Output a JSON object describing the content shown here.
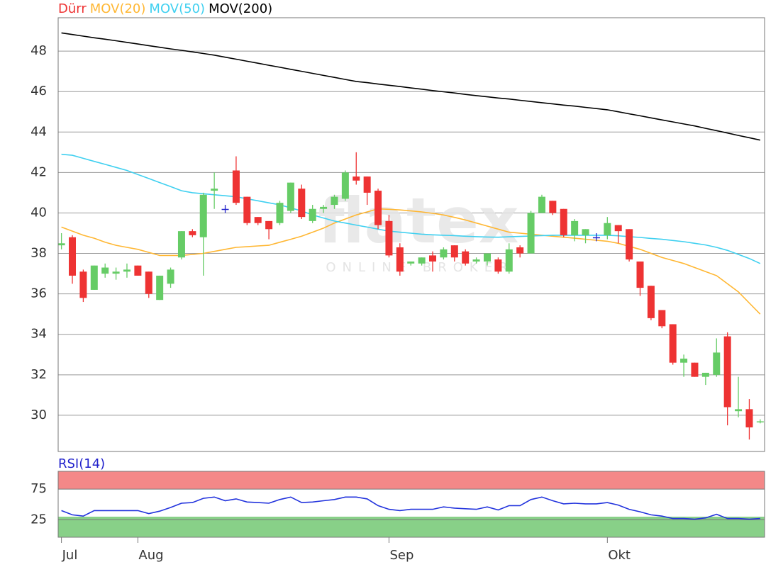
{
  "chart_data": [
    {
      "type": "candlestick",
      "name": "Dürr",
      "color": "#ee3333",
      "up_color": "#66cc66",
      "down_color": "#ee3333",
      "doji_color": "#2222cc",
      "watermark": "flatex",
      "watermark_sub": "ONLINE BROKER",
      "open": [
        38.4,
        38.8,
        37.1,
        36.2,
        37.0,
        37.0,
        37.1,
        37.4,
        37.1,
        35.7,
        36.5,
        37.8,
        39.1,
        38.8,
        41.1,
        40.2,
        42.1,
        40.8,
        39.8,
        39.6,
        39.5,
        40.1,
        41.2,
        39.6,
        40.2,
        40.4,
        40.7,
        41.8,
        41.8,
        41.1,
        39.6,
        38.3,
        37.5,
        37.5,
        37.9,
        37.8,
        38.4,
        38.1,
        37.6,
        37.6,
        37.7,
        37.1,
        38.3,
        38.0,
        40.0,
        40.6,
        40.2,
        38.9,
        38.9,
        38.8,
        38.9,
        39.4,
        39.2,
        37.6,
        36.4,
        35.2,
        34.5,
        32.6,
        32.6,
        31.9,
        32.0,
        33.9,
        30.2,
        30.3,
        29.65
      ],
      "high": [
        39.0,
        38.9,
        37.2,
        37.4,
        37.5,
        37.3,
        37.5,
        37.4,
        37.1,
        36.9,
        37.3,
        39.1,
        39.2,
        41.0,
        42.0,
        40.4,
        42.8,
        40.8,
        39.8,
        39.6,
        40.6,
        41.5,
        41.4,
        40.4,
        40.4,
        40.9,
        42.1,
        43.0,
        41.8,
        41.2,
        39.9,
        38.5,
        37.6,
        37.8,
        38.1,
        38.3,
        38.4,
        38.2,
        37.8,
        38.0,
        37.8,
        38.5,
        38.4,
        40.1,
        40.9,
        40.6,
        40.2,
        39.7,
        39.2,
        39.0,
        39.8,
        39.4,
        39.2,
        37.6,
        36.4,
        35.2,
        34.5,
        33.0,
        32.6,
        32.1,
        33.8,
        34.1,
        31.9,
        30.8,
        29.8
      ],
      "low": [
        38.2,
        36.5,
        35.6,
        36.2,
        36.8,
        36.7,
        36.8,
        36.9,
        35.8,
        35.7,
        36.3,
        37.7,
        38.8,
        36.9,
        40.2,
        40.0,
        40.4,
        39.4,
        39.4,
        38.7,
        39.4,
        40.0,
        39.7,
        39.5,
        40.0,
        40.2,
        40.6,
        41.4,
        40.4,
        39.2,
        37.8,
        36.9,
        37.4,
        37.4,
        37.1,
        37.7,
        37.6,
        37.4,
        37.5,
        37.4,
        37.0,
        37.0,
        37.8,
        38.0,
        40.0,
        39.9,
        38.8,
        38.6,
        38.5,
        38.6,
        38.7,
        38.5,
        37.6,
        35.9,
        34.7,
        34.3,
        32.5,
        31.9,
        31.9,
        31.5,
        31.9,
        29.5,
        29.9,
        28.8,
        29.6
      ],
      "close": [
        38.5,
        36.9,
        35.8,
        37.4,
        37.3,
        37.1,
        37.2,
        36.9,
        36.0,
        36.9,
        37.2,
        39.1,
        38.9,
        40.9,
        41.2,
        40.2,
        40.5,
        39.5,
        39.5,
        39.2,
        40.5,
        41.5,
        39.8,
        40.2,
        40.3,
        40.8,
        42.0,
        41.6,
        41.0,
        39.4,
        37.9,
        37.1,
        37.6,
        37.8,
        37.6,
        38.2,
        37.8,
        37.5,
        37.7,
        38.0,
        37.1,
        38.2,
        38.0,
        40.0,
        40.8,
        40.0,
        38.9,
        39.6,
        39.2,
        38.8,
        39.5,
        39.1,
        37.7,
        36.3,
        34.8,
        34.4,
        32.6,
        32.8,
        31.9,
        32.1,
        33.1,
        30.4,
        30.3,
        29.4,
        29.7
      ],
      "series": [
        {
          "name": "MOV(20)",
          "color": "#ffb733",
          "values": [
            39.3,
            39.1,
            38.9,
            38.75,
            38.55,
            38.4,
            38.3,
            38.2,
            38.05,
            37.9,
            37.9,
            37.9,
            37.95,
            38.0,
            38.1,
            38.2,
            38.3,
            38.33,
            38.37,
            38.4,
            38.55,
            38.7,
            38.85,
            39.05,
            39.25,
            39.5,
            39.7,
            39.9,
            40.05,
            40.2,
            40.18,
            40.15,
            40.1,
            40.05,
            39.98,
            39.9,
            39.78,
            39.65,
            39.5,
            39.35,
            39.2,
            39.05,
            39.0,
            38.95,
            38.9,
            38.85,
            38.8,
            38.75,
            38.7,
            38.65,
            38.6,
            38.5,
            38.35,
            38.2,
            38.0,
            37.8,
            37.65,
            37.5,
            37.3,
            37.1,
            36.9,
            36.5,
            36.1,
            35.55,
            35.0
          ]
        },
        {
          "name": "MOV(50)",
          "color": "#40d0f0",
          "values": [
            42.9,
            42.85,
            42.7,
            42.55,
            42.4,
            42.25,
            42.1,
            41.9,
            41.7,
            41.5,
            41.3,
            41.1,
            41.0,
            40.95,
            40.9,
            40.85,
            40.8,
            40.7,
            40.6,
            40.5,
            40.4,
            40.25,
            40.1,
            39.9,
            39.75,
            39.6,
            39.5,
            39.4,
            39.3,
            39.2,
            39.1,
            39.05,
            39.0,
            38.95,
            38.92,
            38.9,
            38.88,
            38.85,
            38.83,
            38.81,
            38.8,
            38.82,
            38.84,
            38.86,
            38.88,
            38.9,
            38.9,
            38.9,
            38.9,
            38.9,
            38.9,
            38.87,
            38.83,
            38.79,
            38.74,
            38.7,
            38.64,
            38.58,
            38.5,
            38.42,
            38.3,
            38.15,
            37.95,
            37.75,
            37.5
          ]
        },
        {
          "name": "MOV(200)",
          "color": "#000000",
          "values": [
            48.9,
            48.82,
            48.74,
            48.66,
            48.59,
            48.51,
            48.43,
            48.35,
            48.27,
            48.19,
            48.11,
            48.04,
            47.96,
            47.88,
            47.8,
            47.7,
            47.6,
            47.5,
            47.4,
            47.3,
            47.2,
            47.1,
            47.0,
            46.9,
            46.8,
            46.7,
            46.6,
            46.5,
            46.44,
            46.37,
            46.31,
            46.25,
            46.18,
            46.12,
            46.05,
            45.99,
            45.93,
            45.86,
            45.8,
            45.74,
            45.68,
            45.63,
            45.57,
            45.51,
            45.45,
            45.39,
            45.33,
            45.28,
            45.22,
            45.16,
            45.1,
            45.0,
            44.9,
            44.8,
            44.7,
            44.6,
            44.5,
            44.4,
            44.3,
            44.18,
            44.07,
            43.95,
            43.83,
            43.72,
            43.6
          ]
        }
      ],
      "ylim": [
        28.21,
        49.65
      ],
      "yticks": [
        30,
        32,
        34,
        36,
        38,
        40,
        42,
        44,
        46,
        48
      ],
      "xlim": [
        -0.3,
        64.4
      ],
      "xticks": [
        {
          "value": 0,
          "label": "Jul"
        },
        {
          "value": 7,
          "label": "Aug"
        },
        {
          "value": 30,
          "label": "Sep"
        },
        {
          "value": 50,
          "label": "Okt"
        }
      ],
      "grid": true
    },
    {
      "type": "line",
      "title": "RSI(14)",
      "title_color": "#2222cc",
      "color": "#2233dd",
      "values": [
        40,
        33,
        31,
        40,
        40,
        40,
        40,
        40,
        35,
        39,
        45,
        52,
        53,
        60,
        62,
        56,
        59,
        54,
        53,
        52,
        58,
        62,
        53,
        54,
        56,
        58,
        62,
        62,
        59,
        48,
        42,
        40,
        42,
        42,
        42,
        46,
        44,
        43,
        42,
        46,
        41,
        48,
        48,
        58,
        62,
        56,
        51,
        52,
        51,
        51,
        53,
        49,
        42,
        38,
        33,
        31,
        27,
        27,
        26,
        28,
        34,
        27,
        27,
        26,
        27
      ],
      "ylim": [
        -3.5,
        104
      ],
      "yticks": [
        25,
        75
      ],
      "zones": [
        {
          "range": [
            75,
            104
          ],
          "color": "#f48888"
        },
        {
          "range": [
            -3.5,
            30
          ],
          "color": "#88d088"
        }
      ],
      "grid": true
    }
  ]
}
